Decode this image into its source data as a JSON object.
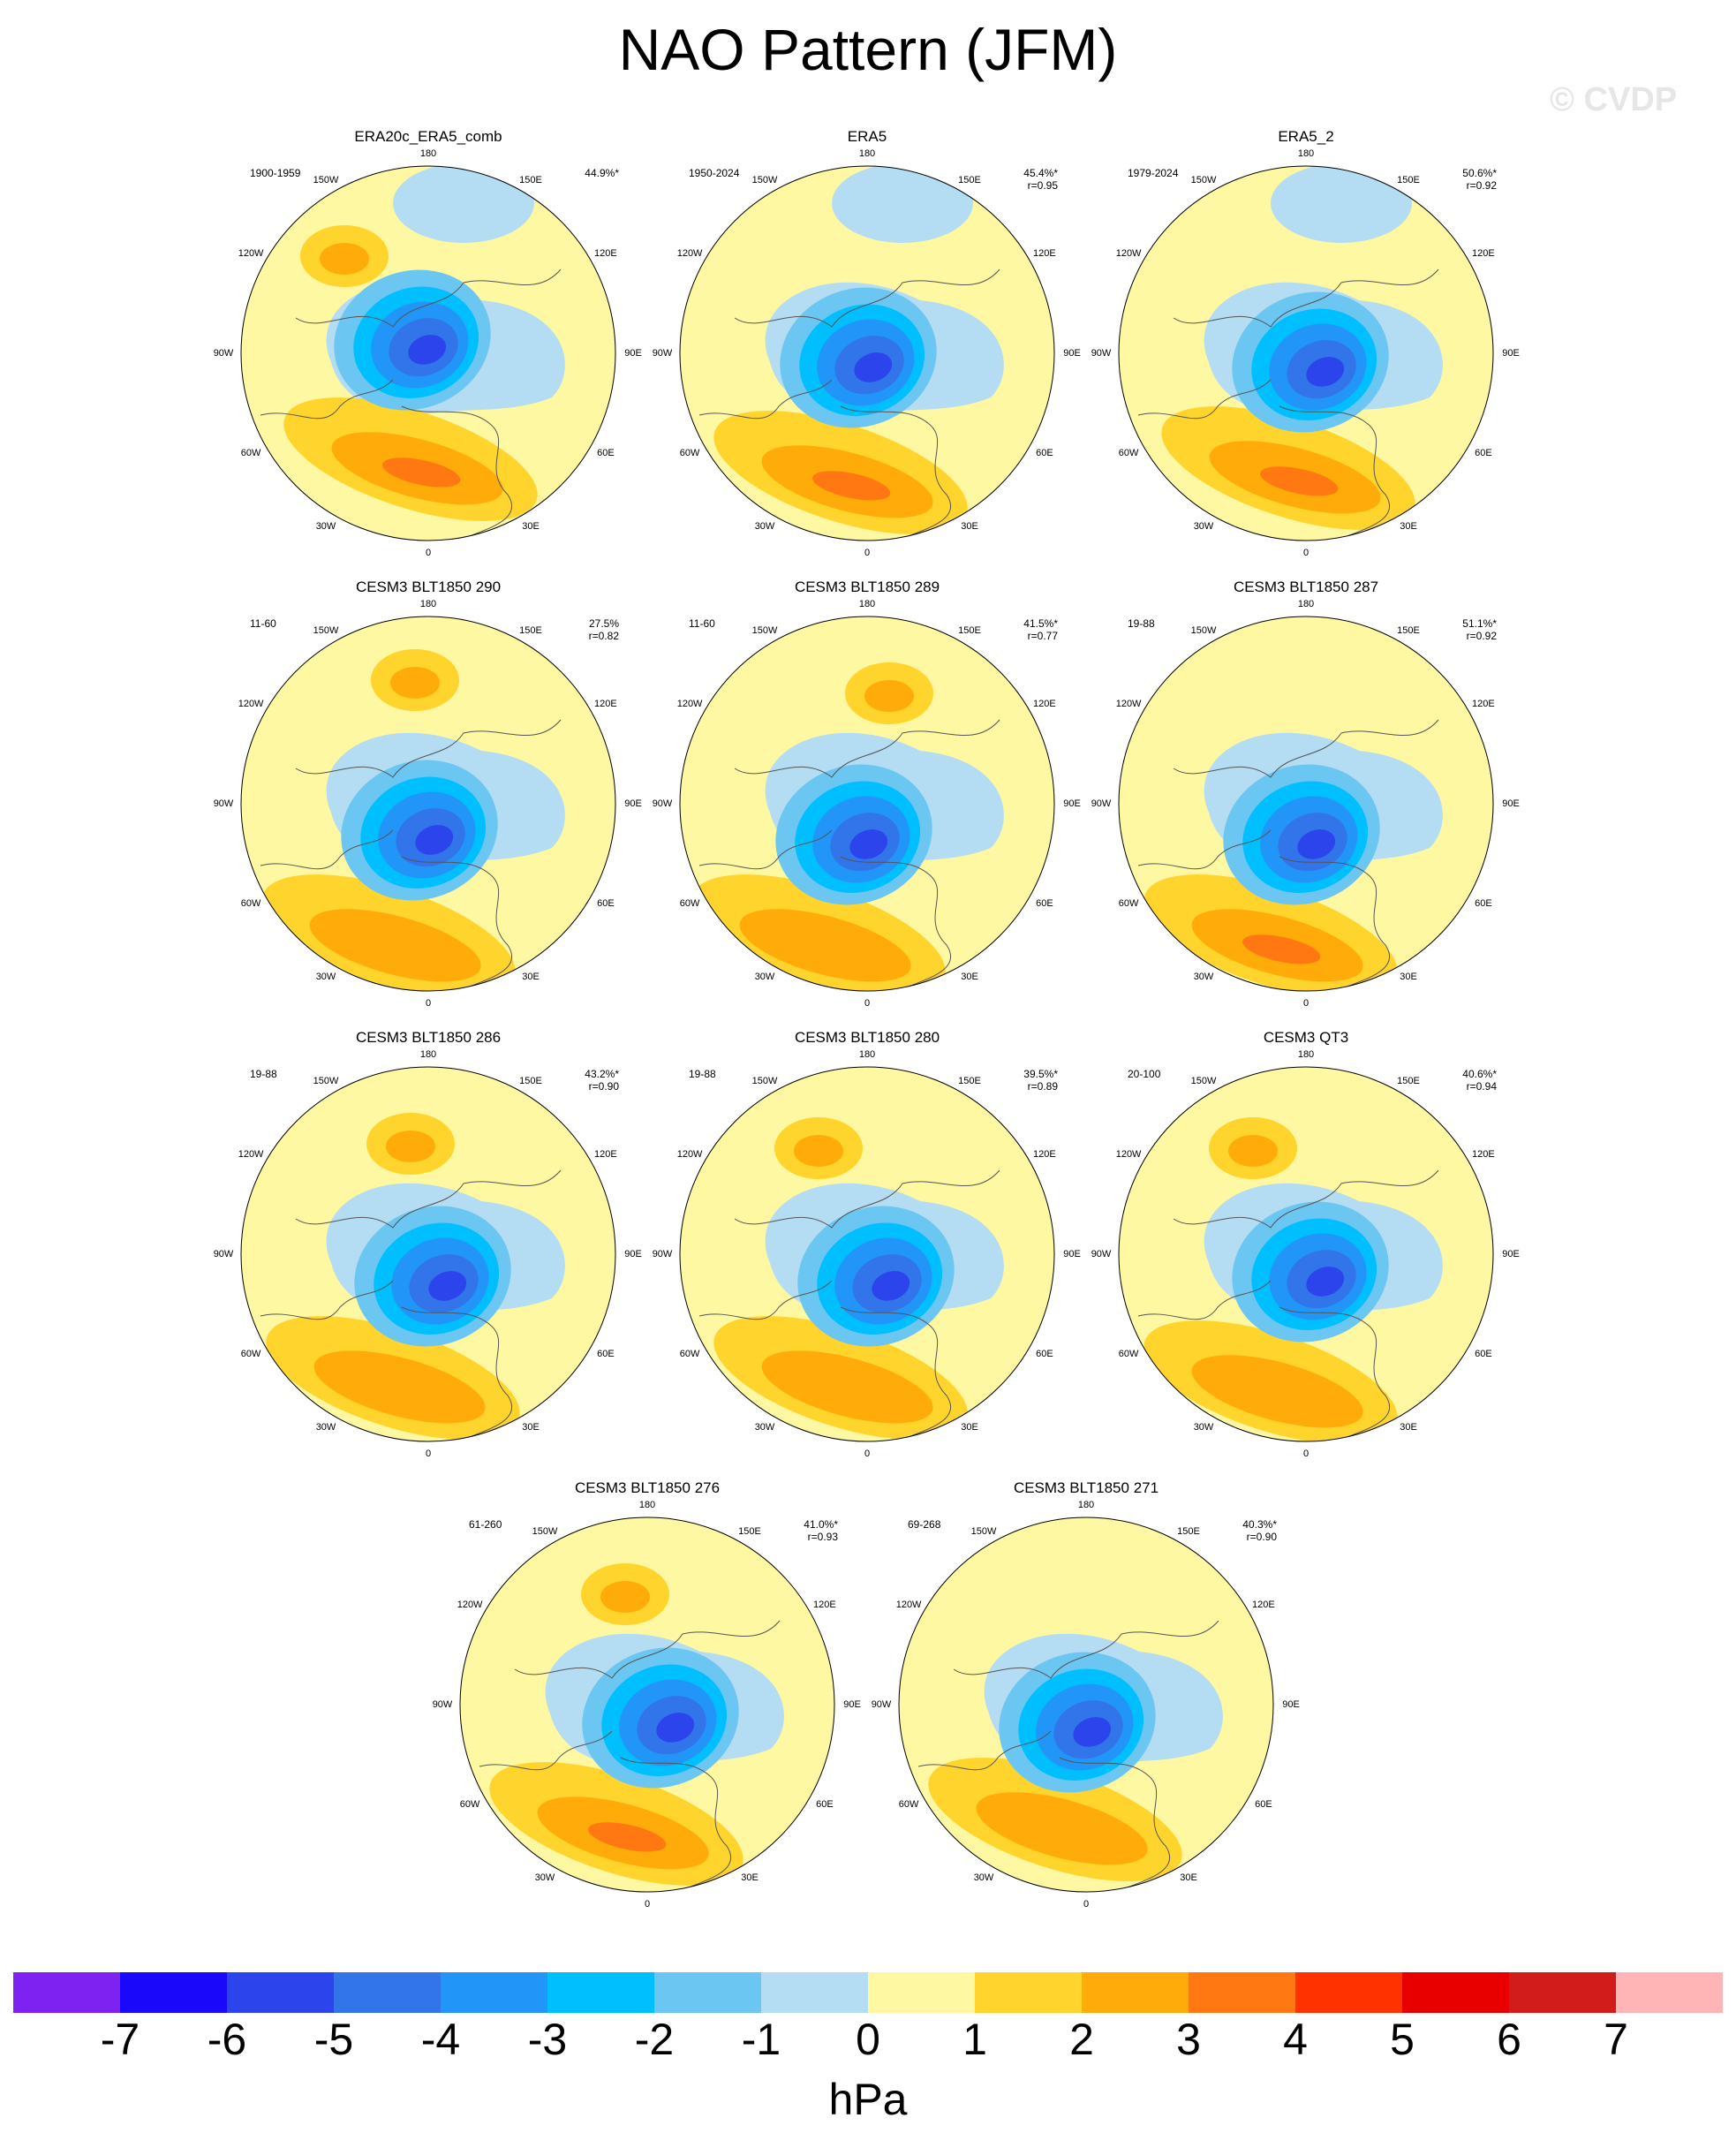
{
  "title": "NAO Pattern (JFM)",
  "watermark": "© CVDP",
  "lon_labels": [
    "180",
    "150E",
    "120E",
    "90E",
    "60E",
    "30E",
    "0",
    "30W",
    "60W",
    "90W",
    "120W",
    "150W"
  ],
  "panels": [
    {
      "title": "ERA20c_ERA5_comb",
      "years": "1900-1959",
      "pct": "44.9%*",
      "r": ""
    },
    {
      "title": "ERA5",
      "years": "1950-2024",
      "pct": "45.4%*",
      "r": "r=0.95"
    },
    {
      "title": "ERA5_2",
      "years": "1979-2024",
      "pct": "50.6%*",
      "r": "r=0.92"
    },
    {
      "title": "CESM3 BLT1850 290",
      "years": "11-60",
      "pct": "27.5%",
      "r": "r=0.82"
    },
    {
      "title": "CESM3 BLT1850 289",
      "years": "11-60",
      "pct": "41.5%*",
      "r": "r=0.77"
    },
    {
      "title": "CESM3 BLT1850 287",
      "years": "19-88",
      "pct": "51.1%*",
      "r": "r=0.92"
    },
    {
      "title": "CESM3 BLT1850 286",
      "years": "19-88",
      "pct": "43.2%*",
      "r": "r=0.90"
    },
    {
      "title": "CESM3 BLT1850 280",
      "years": "19-88",
      "pct": "39.5%*",
      "r": "r=0.89"
    },
    {
      "title": "CESM3 QT3",
      "years": "20-100",
      "pct": "40.6%*",
      "r": "r=0.94"
    },
    {
      "title": "CESM3 BLT1850 276",
      "years": "61-260",
      "pct": "41.0%*",
      "r": "r=0.93"
    },
    {
      "title": "CESM3 BLT1850 271",
      "years": "69-268",
      "pct": "40.3%*",
      "r": "r=0.90"
    }
  ],
  "colorbar": {
    "units": "hPa",
    "ticks": [
      "-7",
      "-6",
      "-5",
      "-4",
      "-3",
      "-2",
      "-1",
      "0",
      "1",
      "2",
      "3",
      "4",
      "5",
      "6",
      "7"
    ],
    "colors": [
      "#7e22f2",
      "#1a08fa",
      "#2c44ec",
      "#3274ea",
      "#2196f8",
      "#00bfff",
      "#6cc6f2",
      "#b4dcf2",
      "#fff8a3",
      "#ffd42c",
      "#ffac0a",
      "#ff7812",
      "#ff3200",
      "#e80000",
      "#d21c1c",
      "#ffb4b6"
    ]
  },
  "palette": {
    "ocean_yellow": "#fff8a3",
    "pos1": "#ffd42c",
    "pos2": "#ffac0a",
    "pos3": "#ff7812",
    "neg1": "#b4dcf2",
    "neg2": "#6cc6f2",
    "neg3": "#00bfff",
    "neg4": "#2196f8",
    "neg5": "#3274ea",
    "neg6": "#2c44ec"
  }
}
